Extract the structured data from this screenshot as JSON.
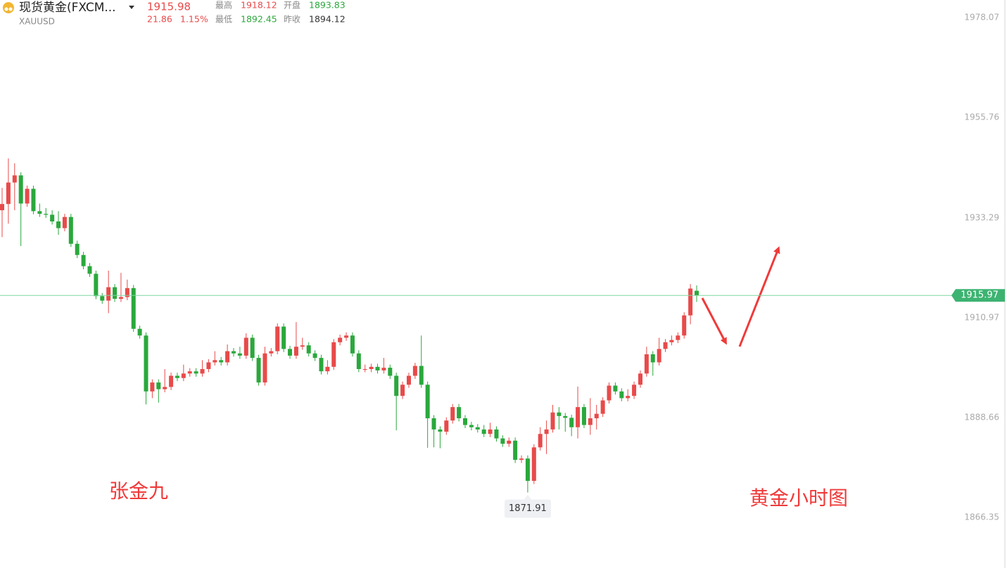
{
  "header": {
    "symbol_name": "现货黄金(FXCM...",
    "symbol_code": "XAUUSD",
    "last": 1915.98,
    "change": 21.86,
    "change_pct": "1.15%",
    "high_label": "最高",
    "high": 1918.12,
    "open_label": "开盘",
    "open": 1893.83,
    "low_label": "最低",
    "low": 1892.45,
    "prev_close_label": "昨收",
    "prev_close": 1894.12
  },
  "chart_data": {
    "type": "candlestick",
    "up_color": "#e84a4a",
    "down_color": "#2aa83c",
    "ylim": [
      1855.03,
      1982.0
    ],
    "yticks": [
      1978.07,
      1955.76,
      1933.29,
      1910.97,
      1888.66,
      1866.35
    ],
    "last_price": 1915.97,
    "low_marker": 1871.91,
    "annotations": [
      "张金九",
      "黄金小时图"
    ],
    "open": [
      1935.0,
      1936.4,
      1941.2,
      1942.8,
      1936.5,
      1939.8,
      1934.8,
      1934.2,
      1934.0,
      1932.5,
      1931.0,
      1933.5,
      1927.5,
      1925.0,
      1922.5,
      1920.8,
      1915.8,
      1914.8,
      1917.8,
      1915.2,
      1915.6,
      1917.6,
      1908.5,
      1907.0,
      1894.5,
      1896.5,
      1895.0,
      1895.5,
      1898.0,
      1897.5,
      1898.5,
      1899.0,
      1898.5,
      1899.5,
      1901.0,
      1901.5,
      1901.0,
      1903.5,
      1903.0,
      1902.5,
      1906.5,
      1902.0,
      1896.5,
      1903.0,
      1903.5,
      1909.0,
      1904.0,
      1902.5,
      1904.5,
      1904.8,
      1903.0,
      1902.0,
      1899.0,
      1900.0,
      1905.5,
      1906.5,
      1907.0,
      1903.0,
      1899.5,
      1899.5,
      1900.0,
      1899.2,
      1899.8,
      1898.0,
      1893.5,
      1896.0,
      1898.0,
      1900.2,
      1896.0,
      1888.5,
      1886.0,
      1885.5,
      1888.0,
      1891.0,
      1888.5,
      1887.0,
      1886.5,
      1886.0,
      1885.0,
      1886.0,
      1884.0,
      1882.8,
      1883.5,
      1879.2,
      1879.5,
      1874.5,
      1882.0,
      1885.0,
      1886.0,
      1889.8,
      1889.0,
      1888.6,
      1886.5,
      1891.0,
      1887.0,
      1888.5,
      1889.5,
      1892.5,
      1895.8,
      1894.5,
      1893.0,
      1893.5,
      1896.0,
      1898.5,
      1902.8,
      1901.0,
      1904.0,
      1905.5,
      1906.0,
      1907.0,
      1911.5,
      1917.0
    ],
    "high": [
      1940.0,
      1946.6,
      1945.5,
      1943.5,
      1940.5,
      1940.5,
      1936.5,
      1935.5,
      1935.0,
      1934.8,
      1934.2,
      1934.2,
      1928.2,
      1925.7,
      1923.2,
      1921.5,
      1916.5,
      1921.5,
      1918.5,
      1921.0,
      1919.5,
      1918.3,
      1909.2,
      1907.7,
      1897.2,
      1897.2,
      1899.5,
      1898.7,
      1898.7,
      1900.5,
      1899.7,
      1899.7,
      1901.5,
      1901.7,
      1903.5,
      1902.2,
      1905.0,
      1904.2,
      1904.5,
      1907.5,
      1907.2,
      1902.7,
      1904.5,
      1904.2,
      1909.7,
      1909.7,
      1904.7,
      1910.0,
      1906.5,
      1905.5,
      1903.7,
      1902.7,
      1901.5,
      1906.2,
      1907.2,
      1907.7,
      1907.7,
      1903.7,
      1900.5,
      1900.7,
      1900.7,
      1902.0,
      1900.5,
      1898.7,
      1896.7,
      1898.7,
      1900.9,
      1907.0,
      1896.7,
      1889.2,
      1886.7,
      1888.7,
      1891.7,
      1891.7,
      1889.2,
      1887.7,
      1887.2,
      1887.0,
      1887.5,
      1886.7,
      1884.7,
      1884.2,
      1884.2,
      1880.2,
      1880.2,
      1882.7,
      1886.5,
      1888.0,
      1891.5,
      1891.0,
      1889.7,
      1889.3,
      1895.6,
      1891.7,
      1893.0,
      1891.5,
      1893.2,
      1896.5,
      1896.5,
      1895.2,
      1895.0,
      1896.7,
      1899.2,
      1904.5,
      1903.5,
      1906.5,
      1906.2,
      1907.0,
      1907.7,
      1912.2,
      1918.5,
      1918.2
    ],
    "low": [
      1929.0,
      1932.0,
      1935.0,
      1927.0,
      1935.8,
      1934.1,
      1933.5,
      1933.3,
      1931.8,
      1929.5,
      1930.3,
      1926.8,
      1924.3,
      1921.8,
      1920.1,
      1915.1,
      1914.1,
      1912.0,
      1914.5,
      1914.5,
      1914.9,
      1907.8,
      1906.3,
      1891.6,
      1893.0,
      1892.0,
      1894.3,
      1894.8,
      1896.8,
      1896.8,
      1897.8,
      1897.8,
      1897.8,
      1898.8,
      1900.3,
      1900.3,
      1900.3,
      1902.3,
      1901.8,
      1901.8,
      1901.3,
      1895.8,
      1895.8,
      1902.3,
      1902.8,
      1903.3,
      1901.8,
      1901.8,
      1903.8,
      1902.3,
      1901.3,
      1898.3,
      1898.3,
      1899.3,
      1904.8,
      1905.8,
      1902.3,
      1898.8,
      1898.8,
      1898.8,
      1898.5,
      1898.5,
      1897.3,
      1885.8,
      1892.8,
      1895.3,
      1897.3,
      1895.3,
      1881.9,
      1882.0,
      1881.8,
      1884.8,
      1887.3,
      1887.8,
      1886.3,
      1885.8,
      1885.3,
      1884.3,
      1884.3,
      1883.3,
      1882.1,
      1882.1,
      1878.5,
      1878.5,
      1871.91,
      1873.8,
      1881.3,
      1880.5,
      1885.3,
      1886.0,
      1885.5,
      1884.5,
      1884.0,
      1886.3,
      1884.8,
      1886.0,
      1888.8,
      1891.8,
      1893.8,
      1892.3,
      1892.3,
      1892.8,
      1895.3,
      1897.8,
      1898.0,
      1900.3,
      1903.3,
      1904.8,
      1905.3,
      1906.3,
      1909.5,
      1914.5
    ],
    "close": [
      1936.4,
      1941.2,
      1942.8,
      1936.5,
      1939.8,
      1934.8,
      1934.2,
      1934.0,
      1932.5,
      1931.0,
      1933.5,
      1927.5,
      1925.0,
      1922.5,
      1920.8,
      1915.8,
      1914.8,
      1917.8,
      1915.2,
      1915.6,
      1917.6,
      1908.5,
      1907.0,
      1894.5,
      1896.5,
      1895.0,
      1895.5,
      1898.0,
      1897.5,
      1898.5,
      1899.0,
      1898.5,
      1899.5,
      1901.0,
      1901.5,
      1901.0,
      1903.5,
      1903.0,
      1902.5,
      1906.5,
      1902.0,
      1896.5,
      1903.0,
      1903.5,
      1909.0,
      1904.0,
      1902.5,
      1904.5,
      1904.8,
      1903.0,
      1902.0,
      1899.0,
      1900.0,
      1905.5,
      1906.5,
      1907.0,
      1903.0,
      1899.5,
      1899.5,
      1900.0,
      1899.2,
      1899.8,
      1898.0,
      1893.5,
      1896.0,
      1898.0,
      1900.2,
      1896.0,
      1888.5,
      1886.0,
      1885.5,
      1888.0,
      1891.0,
      1888.5,
      1887.0,
      1886.5,
      1886.0,
      1885.0,
      1886.0,
      1884.0,
      1882.8,
      1883.5,
      1879.2,
      1879.5,
      1874.5,
      1882.0,
      1885.0,
      1886.0,
      1889.8,
      1889.0,
      1888.6,
      1886.5,
      1891.0,
      1887.0,
      1888.5,
      1889.5,
      1892.5,
      1895.8,
      1894.5,
      1893.0,
      1893.5,
      1896.0,
      1898.5,
      1902.8,
      1901.0,
      1904.0,
      1905.5,
      1906.0,
      1907.0,
      1911.5,
      1917.5,
      1915.97
    ]
  }
}
